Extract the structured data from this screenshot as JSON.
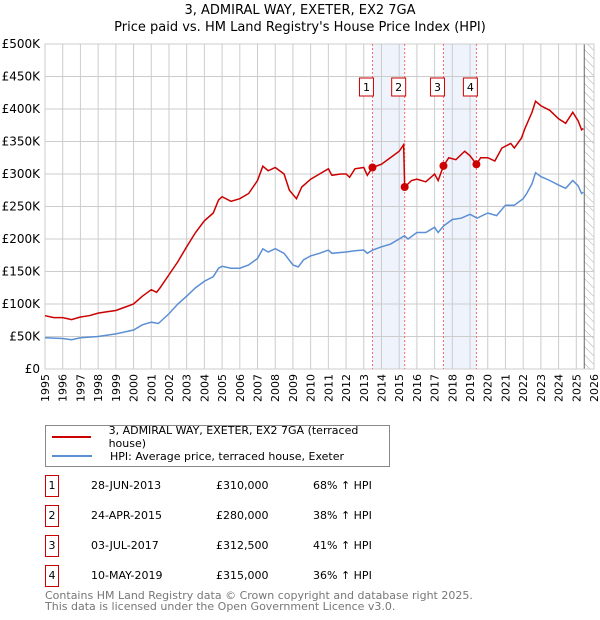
{
  "title": "3, ADMIRAL WAY, EXETER, EX2 7GA",
  "subtitle": "Price paid vs. HM Land Registry's House Price Index (HPI)",
  "chart_data": {
    "type": "line",
    "title": "3, ADMIRAL WAY, EXETER, EX2 7GA",
    "subtitle": "Price paid vs. HM Land Registry's House Price Index (HPI)",
    "xlim": [
      1995,
      2026
    ],
    "ylim": [
      0,
      500000
    ],
    "yticks": [
      0,
      50000,
      100000,
      150000,
      200000,
      250000,
      300000,
      350000,
      400000,
      450000,
      500000
    ],
    "ytick_labels": [
      "£0",
      "£50K",
      "£100K",
      "£150K",
      "£200K",
      "£250K",
      "£300K",
      "£350K",
      "£400K",
      "£450K",
      "£500K"
    ],
    "xticks": [
      1995,
      1996,
      1997,
      1998,
      1999,
      2000,
      2001,
      2002,
      2003,
      2004,
      2005,
      2006,
      2007,
      2008,
      2009,
      2010,
      2011,
      2012,
      2013,
      2014,
      2015,
      2016,
      2017,
      2018,
      2019,
      2020,
      2021,
      2022,
      2023,
      2024,
      2025,
      2026
    ],
    "grid": true,
    "colors": {
      "property": "#cc0000",
      "hpi": "#5b8fd4",
      "shade": "#eef3fc",
      "marker_line": "#ff6666"
    },
    "series": [
      {
        "name": "3, ADMIRAL WAY, EXETER, EX2 7GA (terraced house)",
        "color": "#cc0000",
        "x": [
          1995,
          1995.5,
          1996,
          1996.5,
          1997,
          1997.5,
          1998,
          1998.5,
          1999,
          1999.5,
          2000,
          2000.5,
          2001,
          2001.3,
          2001.5,
          2002,
          2002.5,
          2003,
          2003.5,
          2004,
          2004.5,
          2004.8,
          2005,
          2005.5,
          2006,
          2006.5,
          2007,
          2007.3,
          2007.6,
          2008,
          2008.5,
          2008.8,
          2009.2,
          2009.5,
          2010,
          2010.5,
          2011,
          2011.2,
          2011.7,
          2012,
          2012.2,
          2012.5,
          2013,
          2013.2,
          2013.49,
          2014,
          2014.5,
          2015,
          2015.25,
          2015.31,
          2015.7,
          2016,
          2016.5,
          2017,
          2017.2,
          2017.5,
          2017.8,
          2018.2,
          2018.7,
          2019,
          2019.36,
          2019.6,
          2020,
          2020.4,
          2020.8,
          2021.3,
          2021.5,
          2021.9,
          2022.1,
          2022.5,
          2022.7,
          2023,
          2023.5,
          2024,
          2024.4,
          2024.8,
          2025.1,
          2025.3,
          2025.4
        ],
        "y": [
          82000,
          79000,
          79000,
          76000,
          80000,
          82000,
          86000,
          88000,
          90000,
          95000,
          100000,
          112000,
          122000,
          118000,
          125000,
          145000,
          165000,
          188000,
          210000,
          228000,
          240000,
          260000,
          265000,
          258000,
          262000,
          270000,
          290000,
          312000,
          305000,
          310000,
          300000,
          275000,
          262000,
          280000,
          292000,
          300000,
          308000,
          298000,
          300000,
          300000,
          295000,
          308000,
          310000,
          298000,
          310000,
          315000,
          325000,
          335000,
          345000,
          280000,
          290000,
          292000,
          288000,
          300000,
          290000,
          312500,
          325000,
          322000,
          335000,
          328000,
          315000,
          325000,
          325000,
          320000,
          340000,
          347000,
          340000,
          355000,
          370000,
          395000,
          412000,
          405000,
          398000,
          385000,
          378000,
          395000,
          382000,
          368000,
          370000
        ]
      },
      {
        "name": "HPI: Average price, terraced house, Exeter",
        "color": "#5b8fd4",
        "x": [
          1995,
          1996,
          1996.5,
          1997,
          1998,
          1999,
          2000,
          2000.5,
          2001,
          2001.4,
          2002,
          2002.5,
          2003,
          2003.5,
          2004,
          2004.5,
          2004.8,
          2005,
          2005.5,
          2006,
          2006.5,
          2007,
          2007.3,
          2007.6,
          2008,
          2008.5,
          2009,
          2009.3,
          2009.6,
          2010,
          2010.5,
          2011,
          2011.2,
          2012,
          2012.5,
          2013,
          2013.2,
          2013.5,
          2014,
          2014.5,
          2015,
          2015.3,
          2015.5,
          2016,
          2016.5,
          2017,
          2017.2,
          2017.5,
          2018,
          2018.5,
          2019,
          2019.4,
          2020,
          2020.5,
          2021,
          2021.5,
          2022,
          2022.2,
          2022.5,
          2022.7,
          2023,
          2023.5,
          2024,
          2024.4,
          2024.8,
          2025.1,
          2025.3,
          2025.4
        ],
        "y": [
          48000,
          47000,
          45000,
          48000,
          50000,
          54000,
          60000,
          68000,
          72000,
          70000,
          85000,
          100000,
          112000,
          125000,
          135000,
          142000,
          155000,
          158000,
          155000,
          155000,
          160000,
          170000,
          185000,
          180000,
          185000,
          178000,
          160000,
          157000,
          168000,
          174000,
          178000,
          183000,
          178000,
          180000,
          182000,
          183000,
          178000,
          183000,
          188000,
          192000,
          200000,
          205000,
          200000,
          210000,
          210000,
          218000,
          210000,
          220000,
          230000,
          232000,
          238000,
          232000,
          240000,
          236000,
          252000,
          252000,
          262000,
          270000,
          285000,
          302000,
          296000,
          290000,
          283000,
          278000,
          290000,
          282000,
          270000,
          272000
        ]
      }
    ],
    "transactions": [
      {
        "id": "1",
        "date": "28-JUN-2013",
        "x": 2013.49,
        "price": "£310,000",
        "value": 310000,
        "hpi": "68% ↑ HPI"
      },
      {
        "id": "2",
        "date": "24-APR-2015",
        "x": 2015.31,
        "price": "£280,000",
        "value": 280000,
        "hpi": "38% ↑ HPI"
      },
      {
        "id": "3",
        "date": "03-JUL-2017",
        "x": 2017.5,
        "price": "£312,500",
        "value": 312500,
        "hpi": "41% ↑ HPI"
      },
      {
        "id": "4",
        "date": "10-MAY-2019",
        "x": 2019.36,
        "price": "£315,000",
        "value": 315000,
        "hpi": "36% ↑ HPI"
      }
    ],
    "shaded_ranges": [
      [
        2013.49,
        2015.31
      ],
      [
        2017.5,
        2019.36
      ]
    ],
    "hatched_from": 2025.45
  },
  "legend": [
    {
      "label": "3, ADMIRAL WAY, EXETER, EX2 7GA (terraced house)",
      "color": "#cc0000"
    },
    {
      "label": "HPI: Average price, terraced house, Exeter",
      "color": "#5b8fd4"
    }
  ],
  "footer": [
    "Contains HM Land Registry data © Crown copyright and database right 2025.",
    "This data is licensed under the Open Government Licence v3.0."
  ]
}
